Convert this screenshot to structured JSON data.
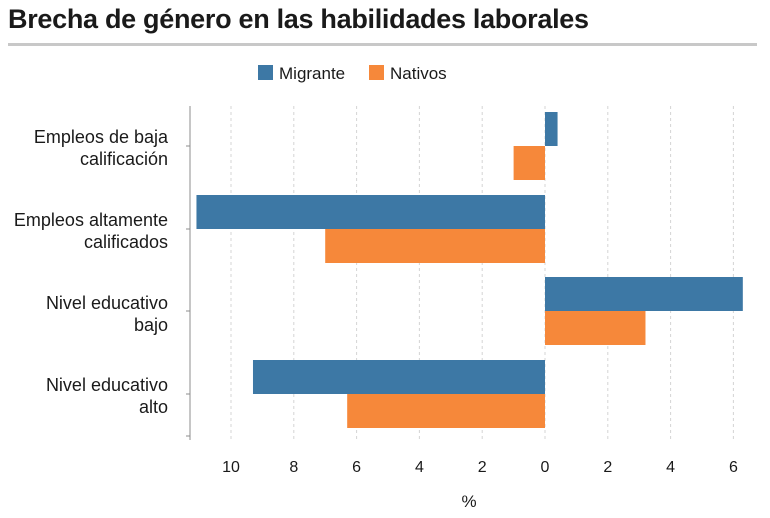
{
  "title": "Brecha de género en las habilidades laborales",
  "colors": {
    "migrante": "#3d78a5",
    "nativos": "#f6883a",
    "grid": "#d4d4d4",
    "axis": "#8c8c8c",
    "rule": "#c8c8c8"
  },
  "chart_data": {
    "type": "bar",
    "orientation": "horizontal",
    "categories": [
      [
        "Empleos de baja",
        "calificación"
      ],
      [
        "Empleos altamente",
        "calificados"
      ],
      [
        "Nivel educativo",
        "bajo"
      ],
      [
        "Nivel educativo",
        "alto"
      ]
    ],
    "series": [
      {
        "name": "Migrante",
        "values": [
          0.4,
          -11.1,
          6.3,
          -9.3
        ]
      },
      {
        "name": "Nativos",
        "values": [
          -1.0,
          -7.0,
          3.2,
          -6.3
        ]
      }
    ],
    "xlabel": "%",
    "xlim": [
      -11.2,
      6.5
    ],
    "x_ticks": [
      -10,
      -8,
      -6,
      -4,
      -2,
      0,
      2,
      4,
      6
    ],
    "x_tick_labels": [
      "10",
      "8",
      "6",
      "4",
      "2",
      "0",
      "2",
      "4",
      "6"
    ],
    "grid": true,
    "legend_position": "top"
  }
}
